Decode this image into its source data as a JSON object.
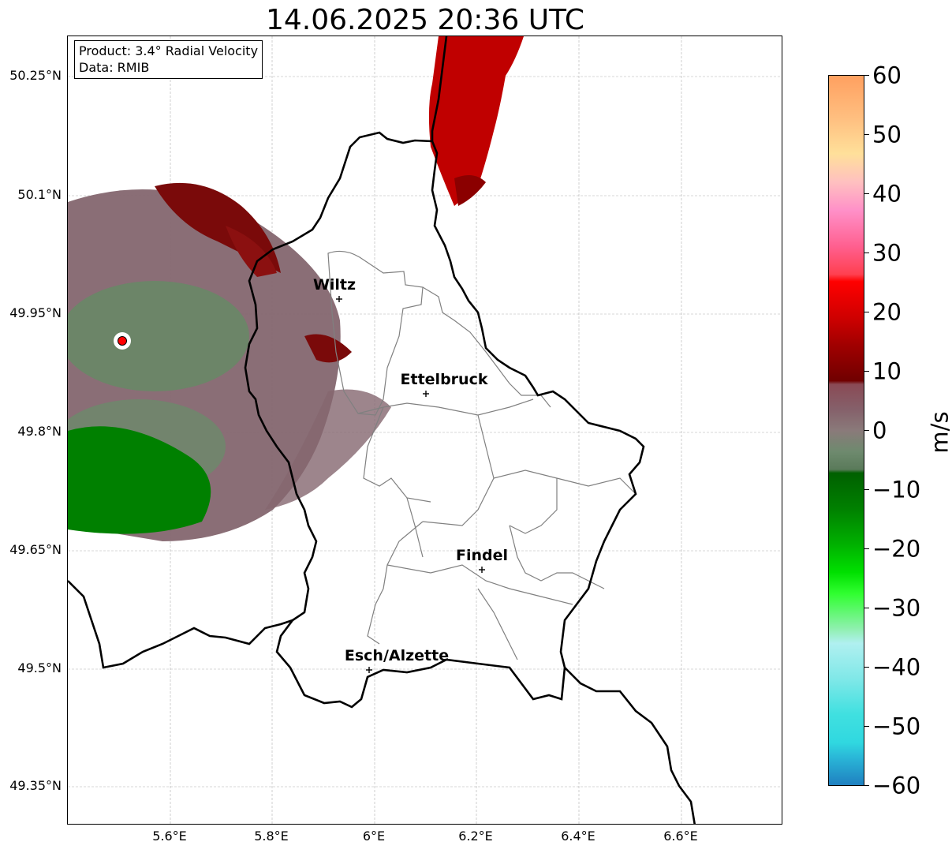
{
  "title": "14.06.2025 20:36 UTC",
  "info": {
    "product": "Product: 3.4° Radial Velocity",
    "data": "Data: RMIB"
  },
  "lat_labels": [
    "50.25°N",
    "50.1°N",
    "49.95°N",
    "49.8°N",
    "49.65°N",
    "49.5°N",
    "49.35°N"
  ],
  "lon_labels": [
    "5.6°E",
    "5.8°E",
    "6°E",
    "6.2°E",
    "6.4°E",
    "6.6°E"
  ],
  "cities": [
    {
      "name": "Wiltz"
    },
    {
      "name": "Ettelbruck"
    },
    {
      "name": "Findel"
    },
    {
      "name": "Esch/Alzette"
    }
  ],
  "colorbar": {
    "label": "m/s",
    "ticks": [
      "60",
      "50",
      "40",
      "30",
      "20",
      "10",
      "0",
      "−10",
      "−20",
      "−30",
      "−40",
      "−50",
      "−60"
    ],
    "range": [
      -60,
      60
    ]
  },
  "colors": {
    "border": "#000000",
    "canton_lines": "#808080",
    "radar_site": "#ff0000"
  }
}
